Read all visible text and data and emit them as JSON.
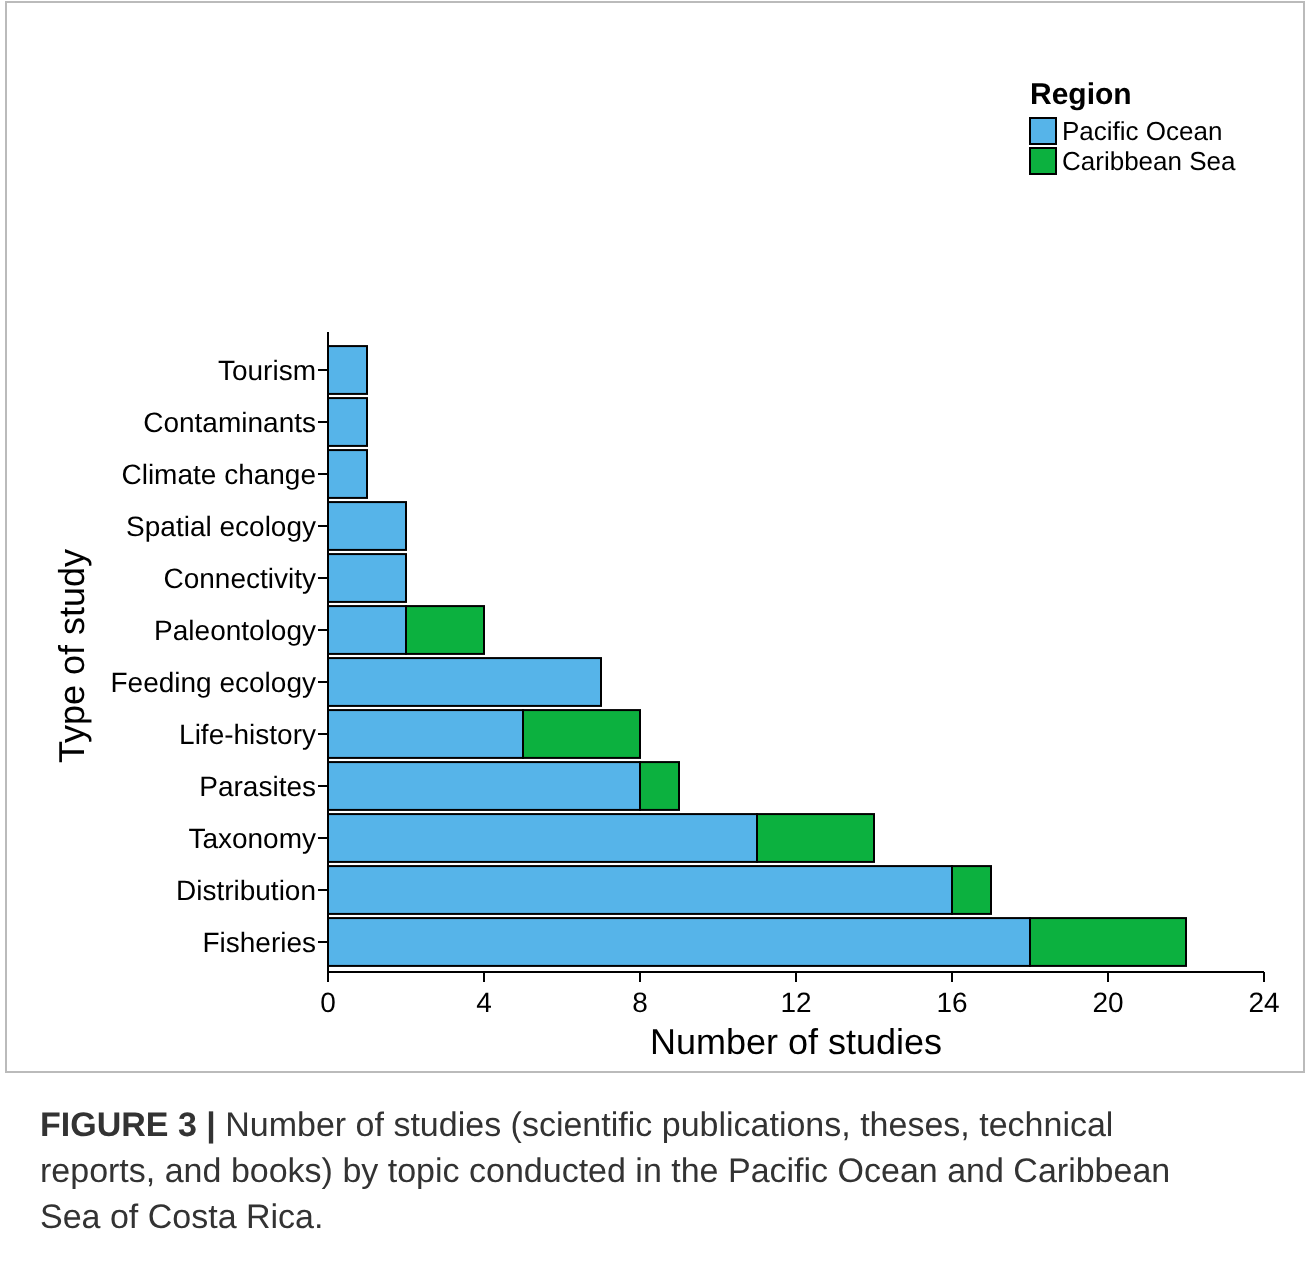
{
  "chart_data": {
    "type": "bar",
    "orientation": "horizontal",
    "stacked": true,
    "xlabel": "Number of studies",
    "ylabel": "Type of study",
    "legend_title": "Region",
    "legend": "top right",
    "categories": [
      "Tourism",
      "Contaminants",
      "Climate change",
      "Spatial ecology",
      "Connectivity",
      "Paleontology",
      "Feeding ecology",
      "Life-history",
      "Parasites",
      "Taxonomy",
      "Distribution",
      "Fisheries"
    ],
    "series": [
      {
        "name": "Pacific Ocean",
        "color": "#56b4e9",
        "values": [
          1,
          1,
          1,
          2,
          2,
          2,
          7,
          5,
          8,
          11,
          16,
          18
        ]
      },
      {
        "name": "Caribbean Sea",
        "color": "#0cb13f",
        "values": [
          0,
          0,
          0,
          0,
          0,
          2,
          0,
          3,
          1,
          3,
          1,
          4
        ]
      }
    ],
    "xlim": [
      0,
      24
    ],
    "xticks": [
      0,
      4,
      8,
      12,
      16,
      20,
      24
    ],
    "annotations": [
      "FIGURE 3 | Number of studies (scientific publications, theses, technical reports, and books) by topic conducted in the Pacific Ocean and Caribbean Sea of Costa Rica."
    ]
  }
}
